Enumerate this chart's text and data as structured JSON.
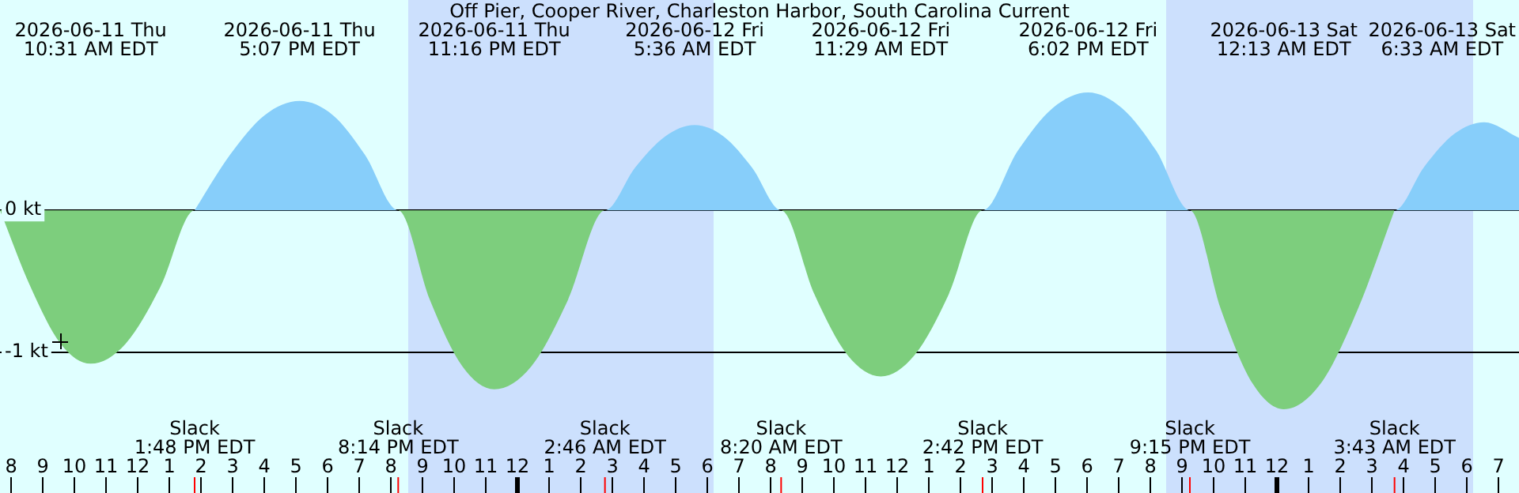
{
  "chart_data": {
    "type": "area",
    "title": "Off Pier, Cooper River, Charleston Harbor, South Carolina Current",
    "series": [
      {
        "color": "#7dce7d",
        "x": [
          "2026-06-11T07:39",
          "2026-06-11T08:37",
          "2026-06-11T09:34",
          "2026-06-11T10:31",
          "2026-06-11T11:37",
          "2026-06-11T12:43",
          "2026-06-11T13:48",
          "2026-06-11T20:14",
          "2026-06-11T21:14",
          "2026-06-11T22:16",
          "2026-06-11T23:16",
          "2026-06-12T00:26",
          "2026-06-12T01:36",
          "2026-06-12T02:46",
          "2026-06-12T08:20",
          "2026-06-12T09:23",
          "2026-06-12T10:26",
          "2026-06-12T11:29",
          "2026-06-12T12:33",
          "2026-06-12T13:38",
          "2026-06-12T14:42",
          "2026-06-12T21:15",
          "2026-06-12T22:14",
          "2026-06-12T23:14",
          "2026-06-13T00:13",
          "2026-06-13T01:23",
          "2026-06-13T02:33",
          "2026-06-13T03:43"
        ],
        "values": [
          0,
          -0.54,
          -0.94,
          -1.08,
          -0.94,
          -0.54,
          0,
          0,
          -0.63,
          -1.1,
          -1.26,
          -1.1,
          -0.63,
          0,
          0,
          -0.59,
          -1.02,
          -1.17,
          -1.02,
          -0.59,
          0,
          0,
          -0.7,
          -1.22,
          -1.4,
          -1.22,
          -0.7,
          0
        ]
      },
      {
        "color": "#87cefa",
        "x": [
          "2026-06-11T13:48",
          "2026-06-11T14:55",
          "2026-06-11T16:01",
          "2026-06-11T17:07",
          "2026-06-11T18:10",
          "2026-06-11T19:11",
          "2026-06-11T20:14",
          "2026-06-12T02:46",
          "2026-06-12T03:43",
          "2026-06-12T04:40",
          "2026-06-12T05:36",
          "2026-06-12T06:31",
          "2026-06-12T07:25",
          "2026-06-12T08:20",
          "2026-06-12T14:42",
          "2026-06-12T15:49",
          "2026-06-12T16:55",
          "2026-06-12T18:02",
          "2026-06-12T19:06",
          "2026-06-12T20:11",
          "2026-06-12T21:15",
          "2026-06-13T03:43",
          "2026-06-13T04:40",
          "2026-06-13T05:37",
          "2026-06-13T06:33",
          "2026-06-13T07:39"
        ],
        "values": [
          0,
          0.39,
          0.67,
          0.77,
          0.67,
          0.39,
          0,
          0,
          0.3,
          0.52,
          0.6,
          0.52,
          0.3,
          0,
          0,
          0.42,
          0.72,
          0.83,
          0.72,
          0.42,
          0,
          0,
          0.31,
          0.54,
          0.62,
          0.51
        ]
      }
    ],
    "xlim": [
      "2026-06-11T07:39",
      "2026-06-13T07:39"
    ],
    "xticks": [
      {
        "value": "2026-06-11T08:00",
        "label": "8"
      },
      {
        "value": "2026-06-11T09:00",
        "label": "9"
      },
      {
        "value": "2026-06-11T10:00",
        "label": "10"
      },
      {
        "value": "2026-06-11T11:00",
        "label": "11"
      },
      {
        "value": "2026-06-11T12:00",
        "label": "12"
      },
      {
        "value": "2026-06-11T13:00",
        "label": "1"
      },
      {
        "value": "2026-06-11T14:00",
        "label": "2"
      },
      {
        "value": "2026-06-11T15:00",
        "label": "3"
      },
      {
        "value": "2026-06-11T16:00",
        "label": "4"
      },
      {
        "value": "2026-06-11T17:00",
        "label": "5"
      },
      {
        "value": "2026-06-11T18:00",
        "label": "6"
      },
      {
        "value": "2026-06-11T19:00",
        "label": "7"
      },
      {
        "value": "2026-06-11T20:00",
        "label": "8"
      },
      {
        "value": "2026-06-11T21:00",
        "label": "9"
      },
      {
        "value": "2026-06-11T22:00",
        "label": "10"
      },
      {
        "value": "2026-06-11T23:00",
        "label": "11"
      },
      {
        "value": "2026-06-12T00:00",
        "label": "12"
      },
      {
        "value": "2026-06-12T01:00",
        "label": "1"
      },
      {
        "value": "2026-06-12T02:00",
        "label": "2"
      },
      {
        "value": "2026-06-12T03:00",
        "label": "3"
      },
      {
        "value": "2026-06-12T04:00",
        "label": "4"
      },
      {
        "value": "2026-06-12T05:00",
        "label": "5"
      },
      {
        "value": "2026-06-12T06:00",
        "label": "6"
      },
      {
        "value": "2026-06-12T07:00",
        "label": "7"
      },
      {
        "value": "2026-06-12T08:00",
        "label": "8"
      },
      {
        "value": "2026-06-12T09:00",
        "label": "9"
      },
      {
        "value": "2026-06-12T10:00",
        "label": "10"
      },
      {
        "value": "2026-06-12T11:00",
        "label": "11"
      },
      {
        "value": "2026-06-12T12:00",
        "label": "12"
      },
      {
        "value": "2026-06-12T13:00",
        "label": "1"
      },
      {
        "value": "2026-06-12T14:00",
        "label": "2"
      },
      {
        "value": "2026-06-12T15:00",
        "label": "3"
      },
      {
        "value": "2026-06-12T16:00",
        "label": "4"
      },
      {
        "value": "2026-06-12T17:00",
        "label": "5"
      },
      {
        "value": "2026-06-12T18:00",
        "label": "6"
      },
      {
        "value": "2026-06-12T19:00",
        "label": "7"
      },
      {
        "value": "2026-06-12T20:00",
        "label": "8"
      },
      {
        "value": "2026-06-12T21:00",
        "label": "9"
      },
      {
        "value": "2026-06-12T22:00",
        "label": "10"
      },
      {
        "value": "2026-06-12T23:00",
        "label": "11"
      },
      {
        "value": "2026-06-13T00:00",
        "label": "12"
      },
      {
        "value": "2026-06-13T01:00",
        "label": "1"
      },
      {
        "value": "2026-06-13T02:00",
        "label": "2"
      },
      {
        "value": "2026-06-13T03:00",
        "label": "3"
      },
      {
        "value": "2026-06-13T04:00",
        "label": "4"
      },
      {
        "value": "2026-06-13T05:00",
        "label": "5"
      },
      {
        "value": "2026-06-13T06:00",
        "label": "6"
      },
      {
        "value": "2026-06-13T07:00",
        "label": "7"
      }
    ],
    "ylim": [
      -1.99,
      1.48
    ],
    "yticks": [
      {
        "value": 0,
        "label": "0 kt"
      },
      {
        "value": -1,
        "label": "-1 kt"
      }
    ],
    "grid": "y",
    "legend": false,
    "bands": [
      {
        "axis": "x",
        "from": "2026-06-11T20:33",
        "to": "2026-06-12T06:12",
        "color": "#cce0fd"
      },
      {
        "axis": "x",
        "from": "2026-06-12T20:30",
        "to": "2026-06-13T06:12",
        "color": "#cce0fd"
      }
    ],
    "annotations": [
      "2026-06-11 Thu\n10:31 AM EDT",
      "2026-06-11 Thu\n5:07 PM EDT",
      "2026-06-11 Thu\n11:16 PM EDT",
      "2026-06-12 Fri\n5:36 AM EDT",
      "2026-06-12 Fri\n11:29 AM EDT",
      "2026-06-12 Fri\n6:02 PM EDT",
      "2026-06-13 Sat\n12:13 AM EDT",
      "2026-06-13 Sat\n6:33 AM EDT",
      "Slack\n1:48 PM EDT",
      "Slack\n8:14 PM EDT",
      "Slack\n2:46 AM EDT",
      "Slack\n8:20 AM EDT",
      "Slack\n2:42 PM EDT",
      "Slack\n9:15 PM EDT",
      "Slack\n3:43 AM EDT"
    ]
  }
}
